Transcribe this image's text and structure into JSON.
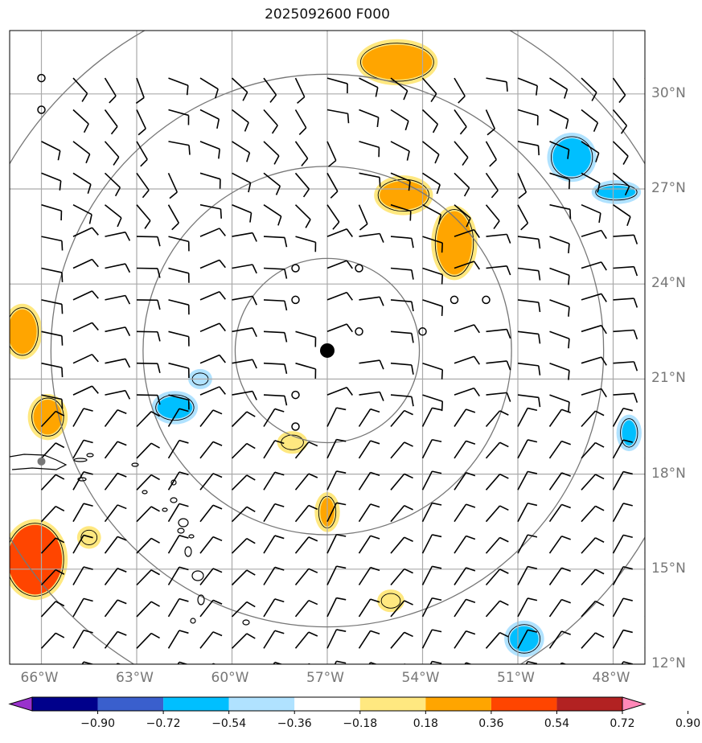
{
  "title": "2025092600 F000",
  "map": {
    "lon_range": [
      -67,
      -47
    ],
    "lat_range": [
      12,
      32
    ],
    "lon_ticks": [
      "66°W",
      "63°W",
      "60°W",
      "57°W",
      "54°W",
      "51°W",
      "48°W"
    ],
    "lat_ticks": [
      "30°N",
      "27°N",
      "24°N",
      "21°N",
      "18°N",
      "15°N",
      "12°N"
    ],
    "lon_tick_values": [
      -66,
      -63,
      -60,
      -57,
      -54,
      -51,
      -48
    ],
    "lat_tick_values": [
      30,
      27,
      24,
      21,
      18,
      15,
      12
    ],
    "center": {
      "lon": -57.0,
      "lat": 21.9
    },
    "range_ring_radius_deg": [
      2.9,
      5.8,
      8.7,
      11.6
    ],
    "gridline_color": "#aaaaaa",
    "ring_color": "#777777",
    "station_icon": "grey-dot",
    "station": {
      "lon": -66.0,
      "lat": 18.4
    }
  },
  "colorbar": {
    "ticks": [
      "−0.90",
      "−0.72",
      "−0.54",
      "−0.36",
      "−0.18",
      "0.18",
      "0.36",
      "0.54",
      "0.72",
      "0.90"
    ],
    "colors": [
      "#9932CC",
      "#00008B",
      "#3A5FCD",
      "#00BFFF",
      "#B0E2FF",
      "#FFFFFF",
      "#FFE880",
      "#FFA500",
      "#FF4500",
      "#B22222",
      "#FF88B8"
    ]
  },
  "blobs": [
    {
      "lon": -54.8,
      "lat": 31.0,
      "rx": 1.1,
      "ry": 0.55,
      "color": "#FFA500"
    },
    {
      "lon": -54.6,
      "lat": 26.8,
      "rx": 0.75,
      "ry": 0.45,
      "color": "#FFA500"
    },
    {
      "lon": -53.0,
      "lat": 25.3,
      "rx": 0.55,
      "ry": 1.0,
      "color": "#FFA500"
    },
    {
      "lon": -66.6,
      "lat": 22.5,
      "rx": 0.45,
      "ry": 0.7,
      "color": "#FFA500"
    },
    {
      "lon": -65.8,
      "lat": 19.8,
      "rx": 0.45,
      "ry": 0.55,
      "color": "#FFA500"
    },
    {
      "lon": -66.2,
      "lat": 15.3,
      "rx": 0.85,
      "ry": 1.1,
      "color": "#FF4500"
    },
    {
      "lon": -57.0,
      "lat": 16.8,
      "rx": 0.22,
      "ry": 0.45,
      "color": "#FFA500"
    },
    {
      "lon": -58.1,
      "lat": 19.0,
      "rx": 0.3,
      "ry": 0.18,
      "color": "#FFE880"
    },
    {
      "lon": -64.5,
      "lat": 16.0,
      "rx": 0.2,
      "ry": 0.18,
      "color": "#FFE880"
    },
    {
      "lon": -55.0,
      "lat": 14.0,
      "rx": 0.25,
      "ry": 0.18,
      "color": "#FFE880"
    },
    {
      "lon": -49.3,
      "lat": 28.0,
      "rx": 0.6,
      "ry": 0.6,
      "color": "#00BFFF"
    },
    {
      "lon": -47.9,
      "lat": 26.9,
      "rx": 0.6,
      "ry": 0.2,
      "color": "#00BFFF"
    },
    {
      "lon": -61.8,
      "lat": 20.1,
      "rx": 0.55,
      "ry": 0.35,
      "color": "#00BFFF"
    },
    {
      "lon": -61.0,
      "lat": 21.0,
      "rx": 0.2,
      "ry": 0.14,
      "color": "#B0E2FF"
    },
    {
      "lon": -47.5,
      "lat": 19.3,
      "rx": 0.22,
      "ry": 0.4,
      "color": "#00BFFF"
    },
    {
      "lon": -50.8,
      "lat": 12.8,
      "rx": 0.45,
      "ry": 0.4,
      "color": "#00BFFF"
    }
  ]
}
